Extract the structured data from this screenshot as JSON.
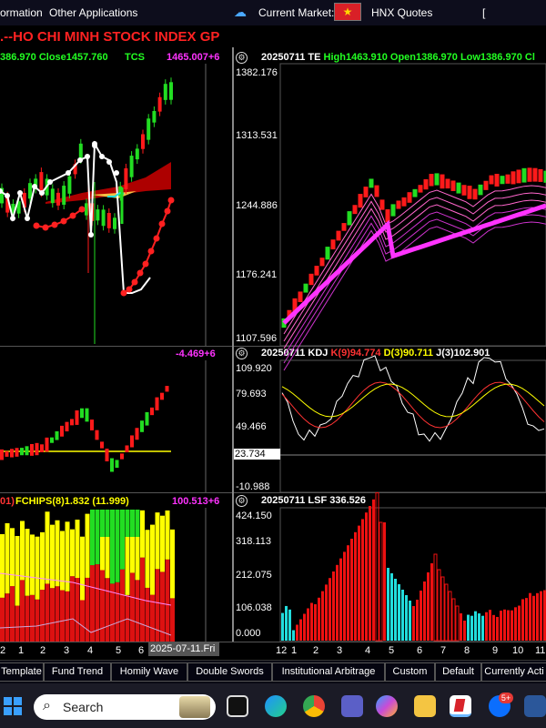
{
  "topbar": {
    "information": "ormation",
    "other_apps": "Other Applications",
    "current_market_label": "Current Market:",
    "market": "HNX Quotes",
    "extra": "["
  },
  "title": ".--HO CHI MINH STOCK INDEX  GP",
  "left_price_info": {
    "text": "386.970 Close1457.760",
    "indicator": "TCS",
    "value": "1465.007+6"
  },
  "left_mid": {
    "value": "-4.469+6"
  },
  "left_bottom": {
    "prefix": "01)",
    "text": "FCHIPS(8)1.832 (11.999)",
    "value": "100.513+6"
  },
  "right_main": {
    "header": "20250711 TE High1463.910 Open1386.970 Low1386.970 Cl",
    "yaxis": [
      "1382.176",
      "1313.531",
      "1244.886",
      "1176.241",
      "1107.596"
    ]
  },
  "right_kdj": {
    "date": "20250711",
    "name": "KDJ",
    "k": "K(9)94.774",
    "d": "D(3)90.711",
    "j": "J(3)102.901",
    "yaxis": [
      "109.920",
      "79.693",
      "49.466",
      "23.734",
      "-10.988"
    ]
  },
  "right_lsf": {
    "header": "20250711 LSF 336.526",
    "yaxis": [
      "424.150",
      "318.113",
      "212.075",
      "106.038",
      "0.000"
    ]
  },
  "xaxis_left": [
    "2",
    "1",
    "2",
    "3",
    "4",
    "5",
    "6"
  ],
  "xaxis_date": "2025-07-11.Fri",
  "xaxis_right": [
    "12",
    "1",
    "2",
    "3",
    "4",
    "5",
    "6",
    "7",
    "8",
    "9",
    "10",
    "11"
  ],
  "tabs": [
    "Template",
    "Fund Trend",
    "Homily Wave",
    "Double Swords",
    "Institutional Arbitrage",
    "Custom",
    "Default",
    "Currently Acti"
  ],
  "taskbar": {
    "search_label": "Search",
    "badge": "5+"
  },
  "colors": {
    "up": "#ff1a1a",
    "down": "#22dd22",
    "magenta": "#ff33ff",
    "yellow": "#ffff00",
    "cyan": "#22dddd",
    "white": "#ffffff"
  }
}
